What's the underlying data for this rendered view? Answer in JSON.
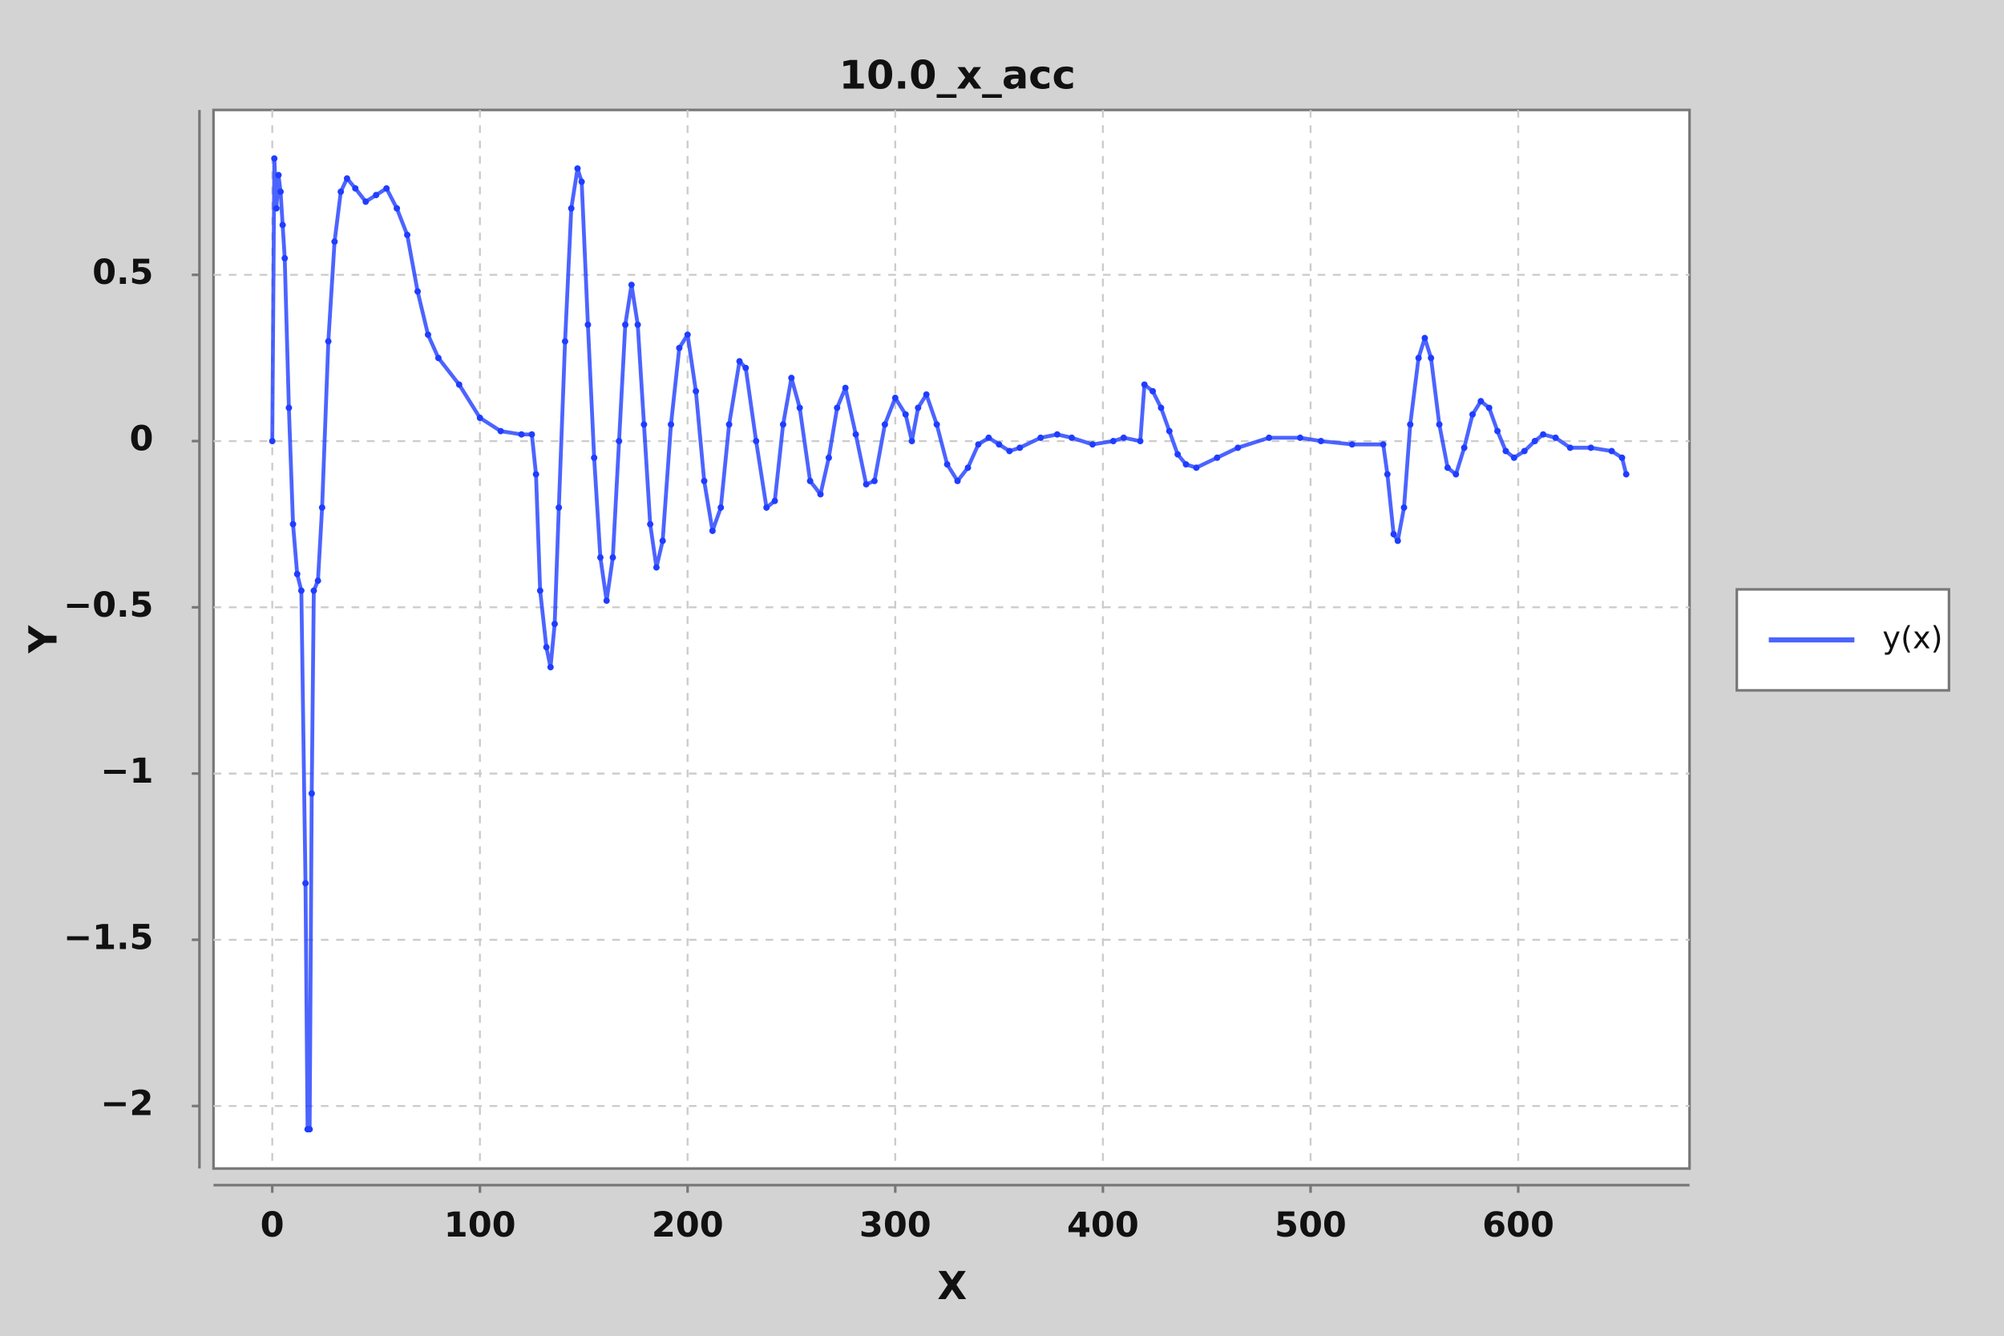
{
  "chart_data": {
    "type": "line",
    "title": "10.0_x_acc",
    "x_label": "X",
    "y_label": "Y",
    "x": [
      0,
      1,
      2,
      3,
      4,
      5,
      6,
      8,
      10,
      12,
      14,
      16,
      17,
      18,
      19,
      20,
      22,
      24,
      27,
      30,
      33,
      36,
      40,
      45,
      50,
      55,
      60,
      65,
      70,
      75,
      80,
      90,
      100,
      110,
      120,
      125,
      127,
      129,
      132,
      134,
      136,
      138,
      141,
      144,
      147,
      149,
      152,
      155,
      158,
      161,
      164,
      167,
      170,
      173,
      176,
      179,
      182,
      185,
      188,
      192,
      196,
      200,
      204,
      208,
      212,
      216,
      220,
      225,
      228,
      233,
      238,
      242,
      246,
      250,
      254,
      259,
      264,
      268,
      272,
      276,
      281,
      286,
      290,
      295,
      300,
      305,
      308,
      311,
      315,
      320,
      325,
      330,
      335,
      340,
      345,
      350,
      355,
      360,
      370,
      378,
      385,
      395,
      405,
      410,
      418,
      420,
      424,
      428,
      432,
      436,
      440,
      445,
      455,
      465,
      480,
      495,
      505,
      520,
      535,
      537,
      540,
      542,
      545,
      548,
      552,
      555,
      558,
      562,
      566,
      570,
      574,
      578,
      582,
      586,
      590,
      594,
      598,
      603,
      608,
      612,
      618,
      625,
      635,
      645,
      650,
      652
    ],
    "series": [
      {
        "name": "y(x)",
        "color": "#1f3dff",
        "values": [
          0,
          0.85,
          0.7,
          0.8,
          0.75,
          0.65,
          0.55,
          0.1,
          -0.25,
          -0.4,
          -0.45,
          -1.33,
          -2.07,
          -2.07,
          -1.06,
          -0.45,
          -0.42,
          -0.2,
          0.3,
          0.6,
          0.75,
          0.79,
          0.76,
          0.72,
          0.74,
          0.76,
          0.7,
          0.62,
          0.45,
          0.32,
          0.25,
          0.17,
          0.07,
          0.03,
          0.02,
          0.02,
          -0.1,
          -0.45,
          -0.62,
          -0.68,
          -0.55,
          -0.2,
          0.3,
          0.7,
          0.82,
          0.78,
          0.35,
          -0.05,
          -0.35,
          -0.48,
          -0.35,
          0.0,
          0.35,
          0.47,
          0.35,
          0.05,
          -0.25,
          -0.38,
          -0.3,
          0.05,
          0.28,
          0.32,
          0.15,
          -0.12,
          -0.27,
          -0.2,
          0.05,
          0.24,
          0.22,
          0.0,
          -0.2,
          -0.18,
          0.05,
          0.19,
          0.1,
          -0.12,
          -0.16,
          -0.05,
          0.1,
          0.16,
          0.02,
          -0.13,
          -0.12,
          0.05,
          0.13,
          0.08,
          0.0,
          0.1,
          0.14,
          0.05,
          -0.07,
          -0.12,
          -0.08,
          -0.01,
          0.01,
          -0.01,
          -0.03,
          -0.02,
          0.01,
          0.02,
          0.01,
          -0.01,
          0.0,
          0.01,
          0.0,
          0.17,
          0.15,
          0.1,
          0.03,
          -0.04,
          -0.07,
          -0.08,
          -0.05,
          -0.02,
          0.01,
          0.01,
          0.0,
          -0.01,
          -0.01,
          -0.1,
          -0.28,
          -0.3,
          -0.2,
          0.05,
          0.25,
          0.31,
          0.25,
          0.05,
          -0.08,
          -0.1,
          -0.02,
          0.08,
          0.12,
          0.1,
          0.03,
          -0.03,
          -0.05,
          -0.03,
          0.0,
          0.02,
          0.01,
          -0.02,
          -0.02,
          -0.03,
          -0.05,
          -0.1
        ]
      }
    ],
    "xlim": [
      -28.3,
      682.5
    ],
    "ylim": [
      -2.188,
      0.996
    ],
    "xticks": [
      0,
      100,
      200,
      300,
      400,
      500,
      600
    ],
    "yticks": [
      {
        "value": -2,
        "label": "−2"
      },
      {
        "value": -1.5,
        "label": "−1.5"
      },
      {
        "value": -1,
        "label": "−1"
      },
      {
        "value": -0.5,
        "label": "−0.5"
      },
      0,
      0.5
    ],
    "grid": true,
    "legend": "right"
  }
}
